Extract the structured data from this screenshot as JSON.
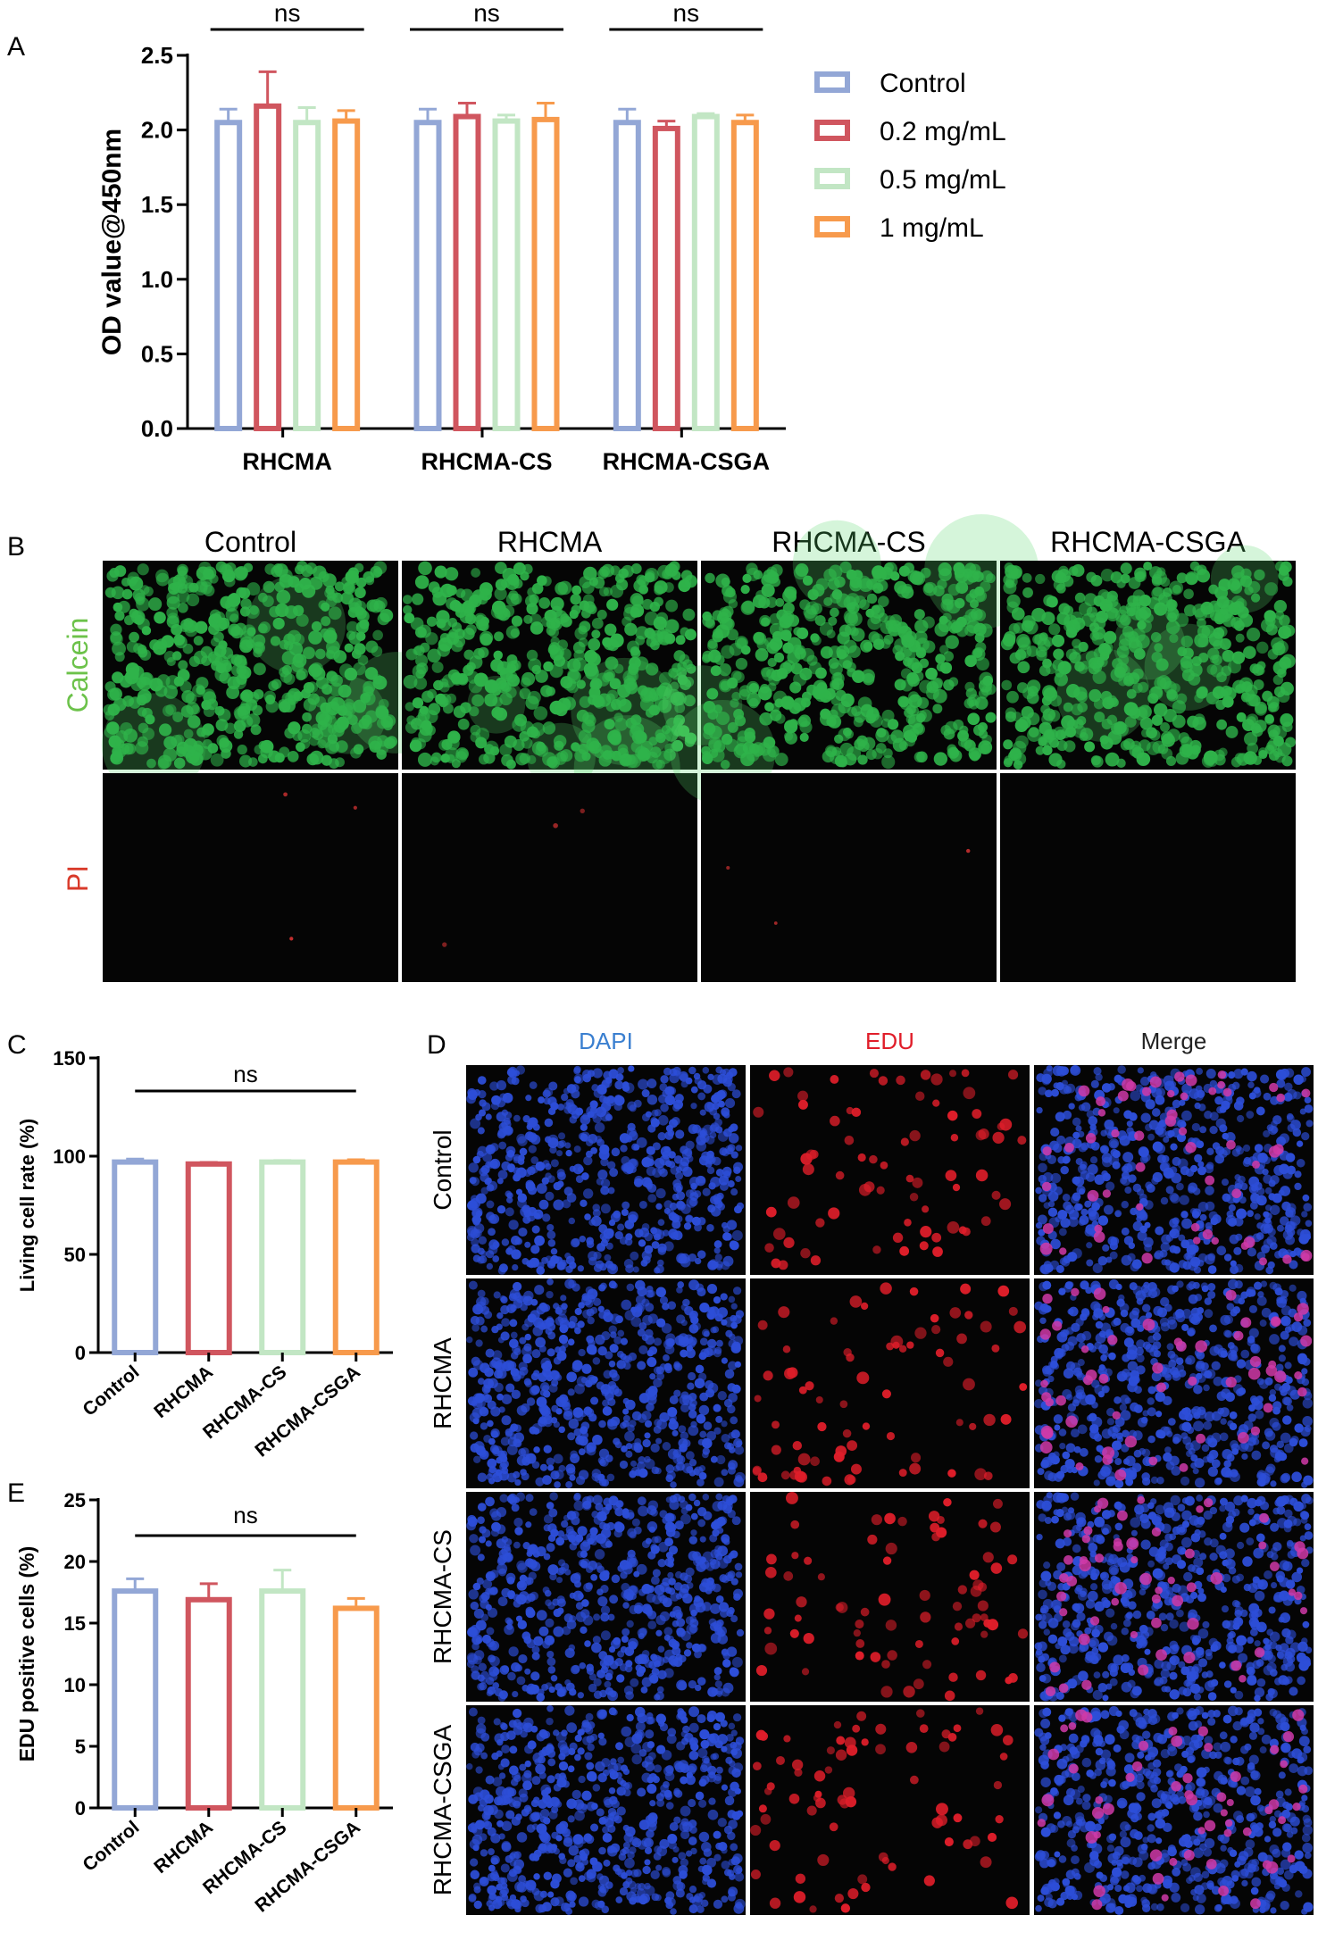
{
  "panel_labels": {
    "a": "A",
    "b": "B",
    "c": "C",
    "d": "D",
    "e": "E"
  },
  "colors": {
    "control": "#93A7D6",
    "c02": "#D0565F",
    "c05": "#C2E6C4",
    "c1": "#F79A4C",
    "calcein": "#2fb34a",
    "pi": "#c83030",
    "dapi": "#2d4ed8",
    "edu": "#e01e2a"
  },
  "chart_data": [
    {
      "id": "A",
      "type": "bar",
      "categories": [
        "RHCMA",
        "RHCMA-CS",
        "RHCMA-CSGA"
      ],
      "ylabel": "OD value@450nm",
      "xlabel": "",
      "ylim": [
        0,
        2.5
      ],
      "yticks": [
        "0.0",
        "0.5",
        "1.0",
        "1.5",
        "2.0",
        "2.5"
      ],
      "legend_position": "right",
      "series": [
        {
          "name": "Control",
          "color": "#93A7D6",
          "values": [
            2.05,
            2.05,
            2.05
          ],
          "errors": [
            0.09,
            0.09,
            0.09
          ]
        },
        {
          "name": "0.2 mg/mL",
          "color": "#D0565F",
          "values": [
            2.16,
            2.09,
            2.01
          ],
          "errors": [
            0.23,
            0.09,
            0.05
          ]
        },
        {
          "name": "0.5 mg/mL",
          "color": "#C2E6C4",
          "values": [
            2.05,
            2.06,
            2.09
          ],
          "errors": [
            0.1,
            0.04,
            0.02
          ]
        },
        {
          "name": "1 mg/mL",
          "color": "#F79A4C",
          "values": [
            2.06,
            2.07,
            2.05
          ],
          "errors": [
            0.07,
            0.11,
            0.05
          ]
        }
      ],
      "annotations": [
        "ns",
        "ns",
        "ns"
      ]
    },
    {
      "id": "C",
      "type": "bar",
      "categories": [
        "Control",
        "RHCMA",
        "RHCMA-CS",
        "RHCMA-CSGA"
      ],
      "ylabel": "Living cell rate (%)",
      "ylim": [
        0,
        150
      ],
      "yticks": [
        "0",
        "50",
        "100",
        "150"
      ],
      "colors": [
        "#93A7D6",
        "#D0565F",
        "#C2E6C4",
        "#F79A4C"
      ],
      "values": [
        97,
        96,
        97,
        97
      ],
      "errors": [
        1.5,
        0.8,
        0.8,
        1.2
      ],
      "annotation": "ns"
    },
    {
      "id": "E",
      "type": "bar",
      "categories": [
        "Control",
        "RHCMA",
        "RHCMA-CS",
        "RHCMA-CSGA"
      ],
      "ylabel": "EDU positive cells (%)",
      "ylim": [
        0,
        25
      ],
      "yticks": [
        "0",
        "5",
        "10",
        "15",
        "20",
        "25"
      ],
      "colors": [
        "#93A7D6",
        "#D0565F",
        "#C2E6C4",
        "#F79A4C"
      ],
      "values": [
        17.6,
        16.9,
        17.6,
        16.2
      ],
      "errors": [
        1.0,
        1.3,
        1.7,
        0.8
      ],
      "annotation": "ns"
    }
  ],
  "panel_b": {
    "columns": [
      "Control",
      "RHCMA",
      "RHCMA-CS",
      "RHCMA-CSGA"
    ],
    "rows": [
      "Calcein",
      "PI"
    ]
  },
  "panel_d": {
    "columns": [
      "DAPI",
      "EDU",
      "Merge"
    ],
    "rows": [
      "Control",
      "RHCMA",
      "RHCMA-CS",
      "RHCMA-CSGA"
    ]
  }
}
